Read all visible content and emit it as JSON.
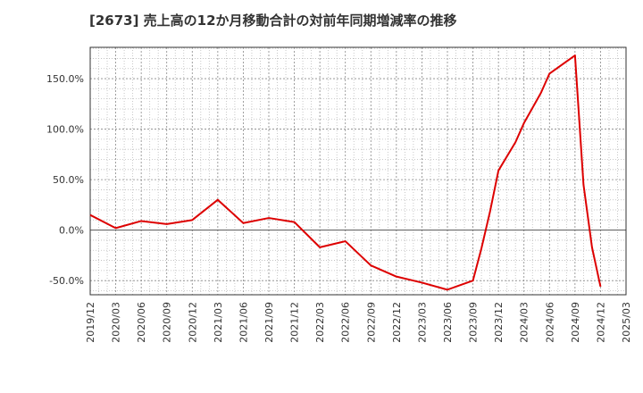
{
  "chart_data": {
    "type": "line",
    "title": "[2673]  売上高の12か月移動合計の対前年同期増減率の推移",
    "xlabel": "",
    "ylabel": "",
    "x_tick_labels": [
      "2019/12",
      "2020/03",
      "2020/06",
      "2020/09",
      "2020/12",
      "2021/03",
      "2021/06",
      "2021/09",
      "2021/12",
      "2022/03",
      "2022/06",
      "2022/09",
      "2022/12",
      "2023/03",
      "2023/06",
      "2023/09",
      "2023/12",
      "2024/03",
      "2024/06",
      "2024/09",
      "2024/12",
      "2025/03"
    ],
    "y_ticks": [
      -50,
      0,
      50,
      100,
      150
    ],
    "y_tick_labels": [
      "-50.0%",
      "0.0%",
      "50.0%",
      "100.0%",
      "150.0%"
    ],
    "ylim": [
      -64,
      181
    ],
    "grid": true,
    "series": [
      {
        "color": "#dd0000",
        "points": [
          [
            "2019/12",
            15
          ],
          [
            "2020/03",
            2
          ],
          [
            "2020/06",
            9
          ],
          [
            "2020/09",
            6
          ],
          [
            "2020/12",
            10
          ],
          [
            "2021/03",
            30
          ],
          [
            "2021/06",
            7
          ],
          [
            "2021/09",
            12
          ],
          [
            "2021/12",
            8
          ],
          [
            "2022/03",
            -17
          ],
          [
            "2022/06",
            -11
          ],
          [
            "2022/09",
            -35
          ],
          [
            "2022/12",
            -46
          ],
          [
            "2023/03",
            -52
          ],
          [
            "2023/06",
            -59
          ],
          [
            "2023/09",
            -50
          ],
          [
            "2023/10",
            -18
          ],
          [
            "2023/11",
            18
          ],
          [
            "2023/12",
            59
          ],
          [
            "2024/02",
            87
          ],
          [
            "2024/03",
            106
          ],
          [
            "2024/05",
            136
          ],
          [
            "2024/06",
            155
          ],
          [
            "2024/09",
            173
          ],
          [
            "2024/10",
            45
          ],
          [
            "2024/11",
            -17
          ],
          [
            "2024/12",
            -56
          ]
        ]
      }
    ]
  }
}
